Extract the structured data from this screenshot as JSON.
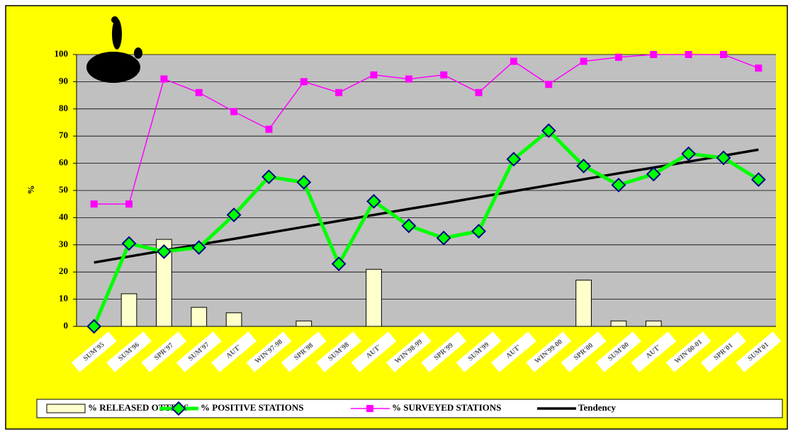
{
  "chart_data": {
    "type": "combo",
    "y_label": "%",
    "categories": [
      "SUM'95",
      "SUM'96",
      "SPR'97",
      "SUM'97",
      "AUT'",
      "WIN'97-98",
      "SPR'98",
      "SUM'98",
      "AUT'",
      "WIN'98-99",
      "SPR'99",
      "SUM'99",
      "AUT'",
      "WIN'99-00",
      "SPR'00",
      "SUM'00",
      "AUT'",
      "WIN'00-01",
      "SPR'01",
      "SUM'01"
    ],
    "series": [
      {
        "name": "% RELEASED OTTERS",
        "type": "bar",
        "color": "#ffffcc",
        "values": [
          0,
          12,
          32,
          7,
          5,
          0,
          2,
          0,
          21,
          0,
          0,
          0,
          0,
          0,
          17,
          2,
          2,
          0,
          0,
          0
        ]
      },
      {
        "name": "% POSITIVE STATIONS",
        "type": "line",
        "marker": "diamond",
        "color": "#00ff00",
        "values": [
          0,
          30.5,
          27.5,
          29,
          41,
          55,
          53,
          23,
          46,
          37,
          32.5,
          35,
          61.5,
          72,
          59,
          52,
          56,
          63.5,
          62,
          54
        ]
      },
      {
        "name": "% SURVEYED STATIONS",
        "type": "line",
        "marker": "square",
        "color": "#ff00ff",
        "values": [
          45,
          45,
          91,
          86,
          79,
          72.5,
          90,
          86,
          92.5,
          91,
          92.5,
          86,
          97.5,
          89,
          97.5,
          99,
          100,
          100,
          100,
          95
        ]
      },
      {
        "name": "Tendency",
        "type": "line",
        "marker": "none",
        "color": "#000000",
        "values": [
          23.5,
          25.7,
          27.9,
          30.1,
          32.2,
          34.4,
          36.6,
          38.8,
          41.0,
          43.2,
          45.3,
          47.5,
          49.7,
          51.9,
          54.1,
          56.3,
          58.4,
          60.6,
          62.8,
          65.0
        ]
      }
    ],
    "ylim": [
      0,
      100
    ],
    "yticks": [
      0,
      10,
      20,
      30,
      40,
      50,
      60,
      70,
      80,
      90,
      100
    ],
    "grid": true,
    "legend": "bottom"
  }
}
